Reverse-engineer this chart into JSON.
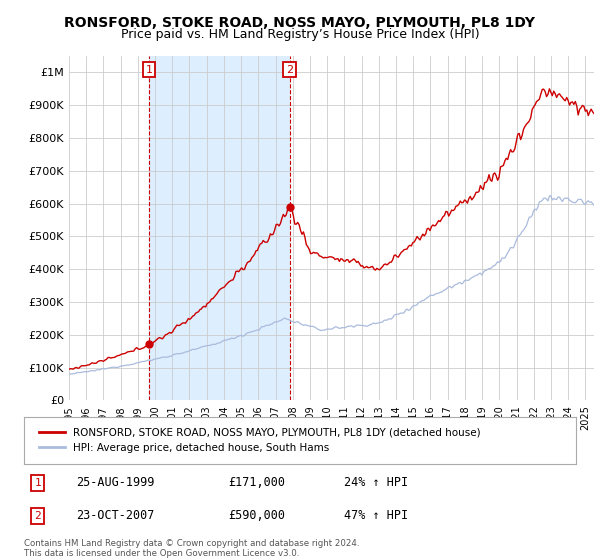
{
  "title": "RONSFORD, STOKE ROAD, NOSS MAYO, PLYMOUTH, PL8 1DY",
  "subtitle": "Price paid vs. HM Land Registry’s House Price Index (HPI)",
  "title_fontsize": 10,
  "subtitle_fontsize": 9,
  "ylim": [
    0,
    1050000
  ],
  "yticks": [
    0,
    100000,
    200000,
    300000,
    400000,
    500000,
    600000,
    700000,
    800000,
    900000,
    1000000
  ],
  "ytick_labels": [
    "£0",
    "£100K",
    "£200K",
    "£300K",
    "£400K",
    "£500K",
    "£600K",
    "£700K",
    "£800K",
    "£900K",
    "£1M"
  ],
  "xlim_start": 1995.0,
  "xlim_end": 2025.5,
  "xtick_years": [
    1995,
    1996,
    1997,
    1998,
    1999,
    2000,
    2001,
    2002,
    2003,
    2004,
    2005,
    2006,
    2007,
    2008,
    2009,
    2010,
    2011,
    2012,
    2013,
    2014,
    2015,
    2016,
    2017,
    2018,
    2019,
    2020,
    2021,
    2022,
    2023,
    2024,
    2025
  ],
  "sale1_x": 1999.65,
  "sale1_y": 171000,
  "sale1_label": "1",
  "sale2_x": 2007.81,
  "sale2_y": 590000,
  "sale2_label": "2",
  "vline_color": "#cc0000",
  "vline_style": "--",
  "property_line_color": "#cc0000",
  "hpi_line_color": "#aabbdd",
  "shade_color": "#ddeeff",
  "legend_property_label": "RONSFORD, STOKE ROAD, NOSS MAYO, PLYMOUTH, PL8 1DY (detached house)",
  "legend_hpi_label": "HPI: Average price, detached house, South Hams",
  "table_row1": [
    "1",
    "25-AUG-1999",
    "£171,000",
    "24% ↑ HPI"
  ],
  "table_row2": [
    "2",
    "23-OCT-2007",
    "£590,000",
    "47% ↑ HPI"
  ],
  "footnote": "Contains HM Land Registry data © Crown copyright and database right 2024.\nThis data is licensed under the Open Government Licence v3.0.",
  "bg_color": "#ffffff",
  "grid_color": "#cccccc"
}
